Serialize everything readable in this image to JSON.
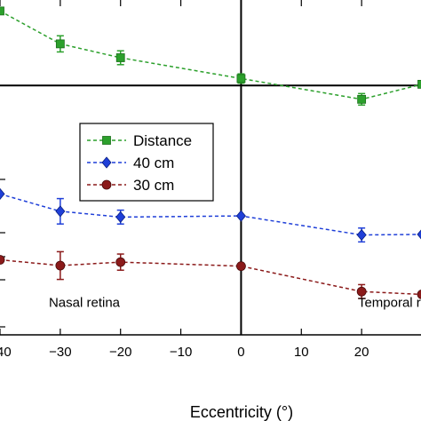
{
  "chart_data": {
    "type": "line",
    "title": "",
    "xlabel": "Eccentricity (°)",
    "ylabel": "",
    "xlim": [
      -40,
      30
    ],
    "ylim": [
      0,
      1
    ],
    "x_ticks": [
      -40,
      -30,
      -20,
      -10,
      0,
      10,
      20
    ],
    "x_tick_labels": [
      "−40",
      "−30",
      "−20",
      "−10",
      "0",
      "10",
      "20"
    ],
    "grid": false,
    "legend_position": "center-left",
    "zero_lines": {
      "vertical_x": 0,
      "horizontal_y": 0.7448
    },
    "region_labels": [
      {
        "text": "Nasal retina",
        "x": -26.0,
        "y": 0.0966
      },
      {
        "text": "Temporal retina",
        "x": 27.0,
        "y": 0.0966
      }
    ],
    "series": [
      {
        "name": "Distance",
        "color": "#2ca02c",
        "marker": "square",
        "x": [
          -40,
          -30,
          -20,
          0,
          20,
          30
        ],
        "y": [
          0.9672,
          0.869,
          0.8276,
          0.7655,
          0.7034,
          0.7483
        ],
        "err": [
          0.0,
          0.0241,
          0.0207,
          0.0138,
          0.0172,
          0.0
        ]
      },
      {
        "name": "40 cm",
        "color": "#1f3fd8",
        "marker": "diamond",
        "x": [
          -40,
          -30,
          -20,
          0,
          20,
          30
        ],
        "y": [
          0.4207,
          0.369,
          0.3517,
          0.3552,
          0.2983,
          0.3
        ],
        "err": [
          0.0,
          0.0379,
          0.0207,
          0.0,
          0.0207,
          0.0
        ]
      },
      {
        "name": "30 cm",
        "color": "#8b1a1a",
        "marker": "circle",
        "x": [
          -40,
          -30,
          -20,
          0,
          20,
          30
        ],
        "y": [
          0.2241,
          0.2069,
          0.2172,
          0.2052,
          0.1293,
          0.1207
        ],
        "err": [
          0.0,
          0.0414,
          0.0241,
          0.0,
          0.0207,
          0.0
        ]
      }
    ]
  }
}
